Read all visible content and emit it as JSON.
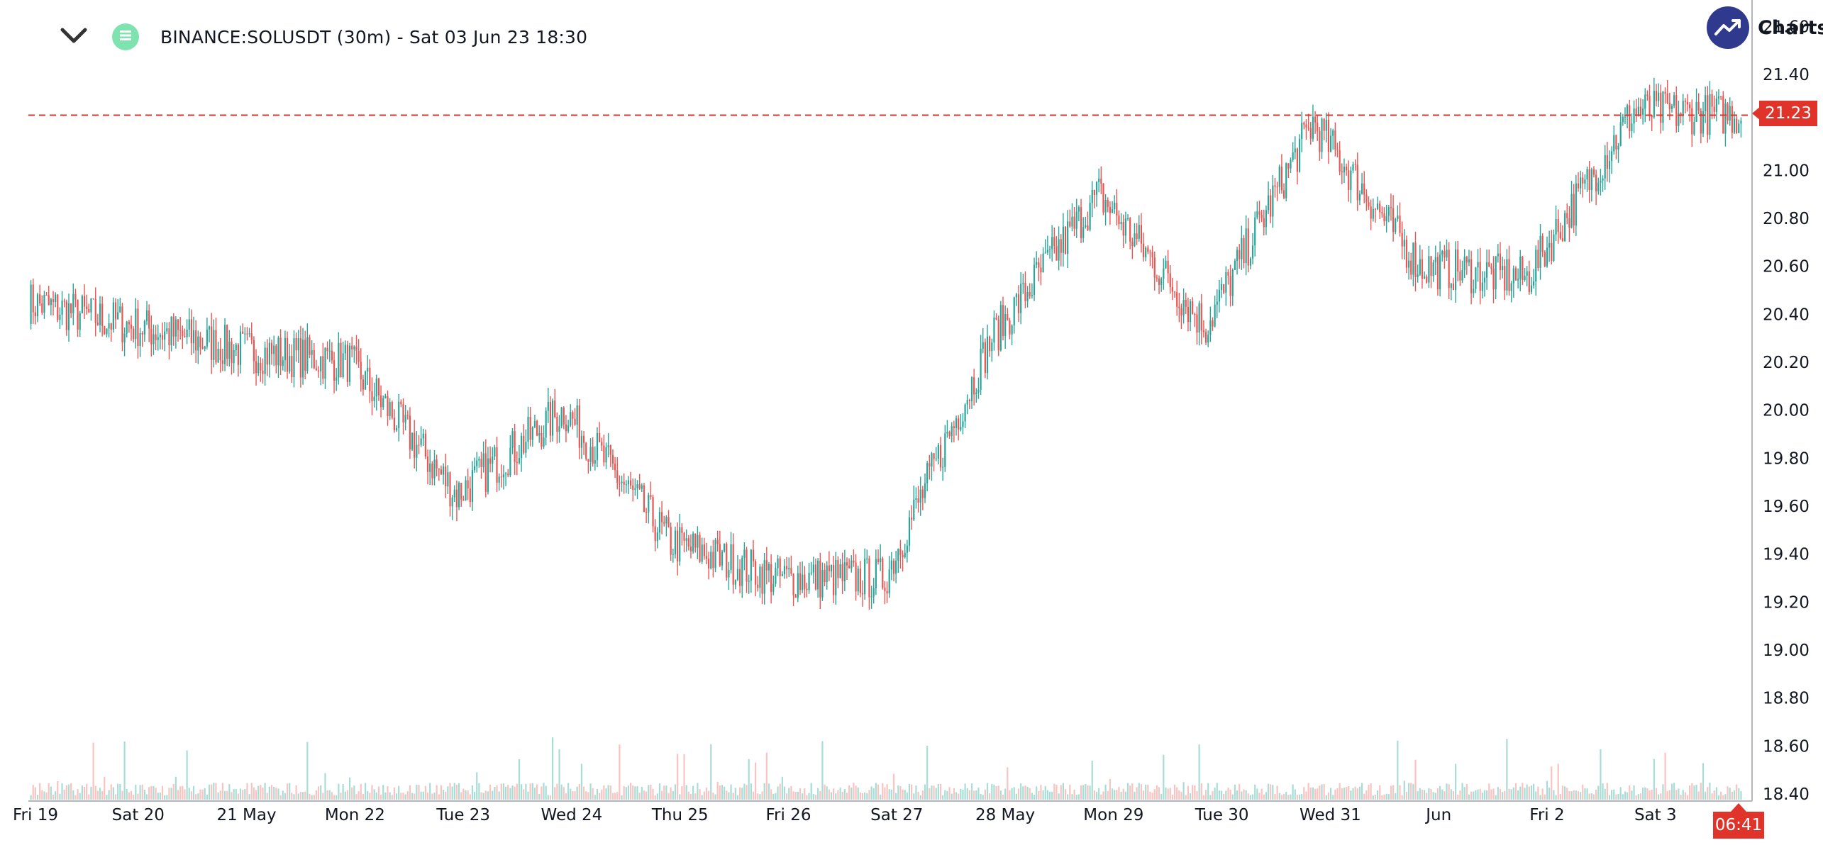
{
  "header": {
    "title": "BINANCE:SOLUSDT (30m) - Sat 03 Jun 23 18:30",
    "brand": "Charts"
  },
  "icons": {
    "collapse": "chevron-down-icon",
    "status": "hamburger-icon",
    "brand": "trend-up-icon"
  },
  "colors": {
    "up": "#26a69a",
    "down": "#ef5350",
    "up_volume": "#a8ddd6",
    "down_volume": "#f8c3c0",
    "last_price": "#e0342b",
    "brand": "#2f3a8f",
    "status": "#7fe3b0"
  },
  "last_price_label": "21.23",
  "countdown_label": "06:41",
  "chart_data": {
    "type": "candlestick",
    "symbol": "BINANCE:SOLUSDT",
    "interval": "30m",
    "ylim": [
      18.4,
      21.6
    ],
    "y_ticks": [
      "21.60",
      "21.40",
      "21.00",
      "20.80",
      "20.60",
      "20.40",
      "20.20",
      "20.00",
      "19.80",
      "19.60",
      "19.40",
      "19.20",
      "19.00",
      "18.80",
      "18.60",
      "18.40"
    ],
    "x_ticks": [
      "Fri 19",
      "Sat 20",
      "21 May",
      "Mon 22",
      "Tue 23",
      "Wed 24",
      "Thu 25",
      "Fri 26",
      "Sat 27",
      "28 May",
      "Mon 29",
      "Tue 30",
      "Wed 31",
      "Jun",
      "Fri 2",
      "Sat 3"
    ],
    "x_range": [
      "Fri 19",
      "Sat 3 18:30"
    ],
    "last_price": 21.23,
    "last_price_line": "dashed",
    "grid": false,
    "series": [
      {
        "name": "SOLUSDT close",
        "x": [
          "Fri 19",
          "Sat 20",
          "21 May",
          "Mon 22",
          "Tue 23",
          "Wed 24",
          "Thu 25",
          "Fri 26",
          "Sat 27",
          "28 May",
          "Mon 29",
          "Tue 30",
          "Wed 31",
          "Jun",
          "Fri 2",
          "Sat 3",
          "Sat 3 18:30"
        ],
        "values": [
          20.45,
          20.35,
          20.25,
          20.2,
          19.65,
          20.0,
          19.45,
          19.3,
          19.3,
          20.3,
          20.9,
          20.35,
          21.2,
          20.6,
          20.55,
          21.25,
          21.23
        ]
      }
    ]
  }
}
